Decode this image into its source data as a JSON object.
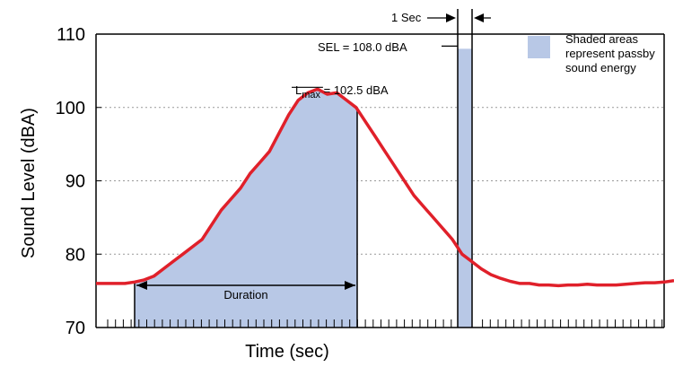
{
  "chart_data": {
    "type": "area",
    "xlabel": "Time (sec)",
    "ylabel": "Sound Level (dBA)",
    "ylim": [
      70,
      110
    ],
    "yticks": [
      70,
      80,
      90,
      100,
      110
    ],
    "grid": "dotted horizontal lines at 80, 90, 100",
    "series": [
      {
        "values": [
          76,
          76,
          76,
          76,
          76.2,
          76.5,
          77,
          78,
          79,
          80,
          81,
          82,
          84,
          86,
          87.5,
          89,
          91,
          92.5,
          94,
          96.5,
          99,
          101,
          102,
          102.5,
          101.8,
          102,
          101,
          100,
          98,
          96,
          94,
          92,
          90,
          88,
          86.5,
          85,
          83.5,
          82,
          80,
          79,
          78,
          77.2,
          76.7,
          76.3,
          76,
          76,
          75.8,
          75.8,
          75.7,
          75.8,
          75.8,
          75.9,
          75.8,
          75.8,
          75.8,
          75.9,
          76,
          76.1,
          76.1,
          76.2,
          76.4
        ]
      }
    ],
    "sel_bar": {
      "value": 108.0,
      "width_label": "1 Sec"
    },
    "annotations": {
      "lmax": {
        "prefix": "L",
        "subscript": "max",
        "text": " = 102.5 dBA",
        "value": 102.5
      },
      "sel": {
        "text": "SEL  = 108.0 dBA",
        "value": 108.0
      },
      "duration": {
        "text": "Duration"
      },
      "one_sec": {
        "text": "1 Sec"
      }
    },
    "legend": {
      "position": "top-right",
      "color": "#b8c8e6",
      "lines": [
        "Shaded areas",
        "represent passby",
        "sound energy"
      ]
    },
    "colors": {
      "line": "#e0202a",
      "fill": "#b8c8e6",
      "frame": "#000000",
      "grid": "#999999"
    }
  }
}
